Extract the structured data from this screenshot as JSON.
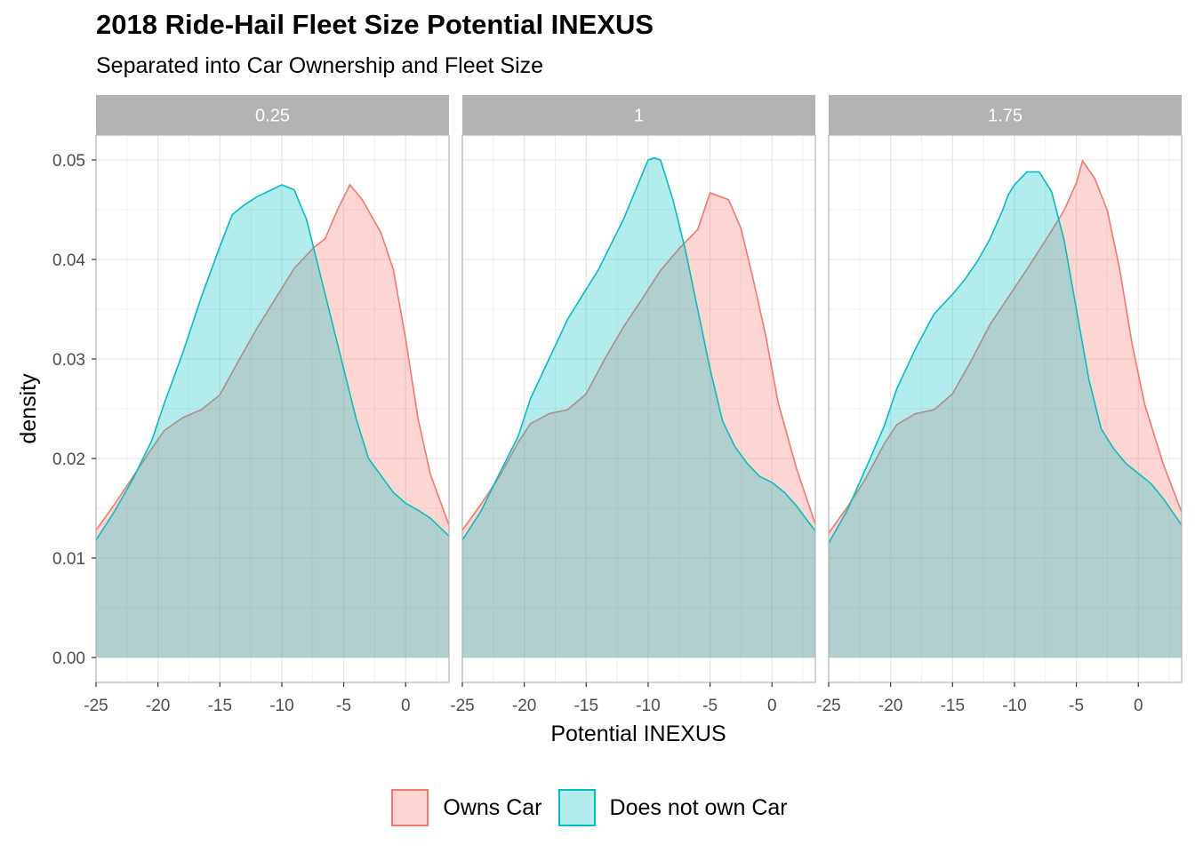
{
  "chart_data": {
    "type": "area",
    "title": "2018 Ride-Hail Fleet Size Potential INEXUS",
    "subtitle": "Separated into Car Ownership and Fleet Size",
    "xlabel": "Potential INEXUS",
    "ylabel": "density",
    "xlim": [
      -25,
      3.5
    ],
    "ylim": [
      -0.0025,
      0.0525
    ],
    "x_ticks": [
      -25,
      -20,
      -15,
      -10,
      -5,
      0
    ],
    "x_tick_labels": [
      "-25",
      "-20",
      "-15",
      "-10",
      "-5",
      "0"
    ],
    "y_ticks": [
      0.0,
      0.01,
      0.02,
      0.03,
      0.04,
      0.05
    ],
    "y_tick_labels": [
      "0.00",
      "0.01",
      "0.02",
      "0.03",
      "0.04",
      "0.05"
    ],
    "grid": true,
    "legend_position": "bottom",
    "series_meta": [
      {
        "name": "Owns Car",
        "line_color": "#F8766D",
        "fill_color": "#F8766D"
      },
      {
        "name": "Does not own Car",
        "line_color": "#00BFC4",
        "fill_color": "#00BFC4"
      }
    ],
    "panels": [
      {
        "label": "0.25",
        "series": [
          {
            "name": "Owns Car",
            "x": [
              -25,
              -23.5,
              -22,
              -20.5,
              -19.5,
              -18,
              -16.5,
              -15,
              -13.5,
              -12,
              -10.5,
              -9,
              -7.5,
              -6.5,
              -5.5,
              -4.5,
              -3.5,
              -2,
              -1,
              0,
              1,
              2,
              3.5
            ],
            "y": [
              0.0128,
              0.0154,
              0.0182,
              0.021,
              0.0228,
              0.0241,
              0.0249,
              0.0264,
              0.0298,
              0.0331,
              0.0361,
              0.0391,
              0.0411,
              0.0421,
              0.045,
              0.0475,
              0.046,
              0.0427,
              0.039,
              0.032,
              0.024,
              0.0184,
              0.0133
            ]
          },
          {
            "name": "Does not own Car",
            "x": [
              -25,
              -23.5,
              -22,
              -20.5,
              -19.5,
              -18,
              -16.5,
              -15,
              -14,
              -13,
              -12,
              -11,
              -10,
              -9,
              -8,
              -7,
              -6,
              -5,
              -4,
              -3,
              -2,
              -1,
              0,
              1,
              2,
              3.5
            ],
            "y": [
              0.0118,
              0.0147,
              0.018,
              0.0218,
              0.0255,
              0.0306,
              0.0362,
              0.0413,
              0.0445,
              0.0455,
              0.0463,
              0.0469,
              0.0475,
              0.047,
              0.044,
              0.039,
              0.034,
              0.029,
              0.024,
              0.02,
              0.0183,
              0.0166,
              0.0155,
              0.0148,
              0.014,
              0.0122
            ]
          }
        ]
      },
      {
        "label": "1",
        "series": [
          {
            "name": "Owns Car",
            "x": [
              -25,
              -23.5,
              -22,
              -20.5,
              -19.5,
              -18,
              -16.5,
              -15,
              -13.5,
              -12,
              -10.5,
              -9,
              -7.5,
              -6,
              -5,
              -3.5,
              -2.5,
              -1.5,
              -0.5,
              0.5,
              2,
              3.5
            ],
            "y": [
              0.0128,
              0.0154,
              0.0182,
              0.0216,
              0.0235,
              0.0245,
              0.0249,
              0.0265,
              0.03,
              0.0332,
              0.036,
              0.0389,
              0.0411,
              0.043,
              0.0467,
              0.046,
              0.0431,
              0.0379,
              0.0323,
              0.0256,
              0.0189,
              0.0134
            ]
          },
          {
            "name": "Does not own Car",
            "x": [
              -25,
              -23.5,
              -22,
              -20.5,
              -19.5,
              -18,
              -16.5,
              -15,
              -14,
              -13,
              -12,
              -11,
              -10,
              -9.5,
              -9,
              -8,
              -7,
              -6,
              -5,
              -4,
              -3,
              -2,
              -1,
              0,
              1,
              2,
              3.5
            ],
            "y": [
              0.0118,
              0.0147,
              0.0185,
              0.0222,
              0.026,
              0.03,
              0.034,
              0.037,
              0.039,
              0.0415,
              0.044,
              0.047,
              0.05,
              0.0502,
              0.05,
              0.046,
              0.041,
              0.035,
              0.029,
              0.0238,
              0.0212,
              0.0195,
              0.0182,
              0.0176,
              0.0166,
              0.0152,
              0.0127
            ]
          }
        ]
      },
      {
        "label": "1.75",
        "series": [
          {
            "name": "Owns Car",
            "x": [
              -25,
              -23.5,
              -22,
              -20.5,
              -19.5,
              -18,
              -16.5,
              -15,
              -13.5,
              -12,
              -10.5,
              -9,
              -7.5,
              -6,
              -5,
              -4.5,
              -3.5,
              -2.5,
              -1.5,
              -0.5,
              0.5,
              2,
              3.5
            ],
            "y": [
              0.0125,
              0.0151,
              0.018,
              0.0215,
              0.0234,
              0.0245,
              0.0249,
              0.0265,
              0.0298,
              0.0334,
              0.0362,
              0.039,
              0.0419,
              0.0449,
              0.0477,
              0.0499,
              0.0481,
              0.0449,
              0.039,
              0.0315,
              0.0255,
              0.0195,
              0.0146
            ]
          },
          {
            "name": "Does not own Car",
            "x": [
              -25,
              -23.5,
              -22,
              -20.5,
              -19.5,
              -18,
              -16.5,
              -15,
              -14,
              -13,
              -12,
              -11,
              -10.5,
              -10,
              -9,
              -8,
              -7,
              -6,
              -5,
              -4,
              -3,
              -2,
              -1,
              0,
              1,
              2,
              3.5
            ],
            "y": [
              0.0115,
              0.0148,
              0.019,
              0.0233,
              0.027,
              0.031,
              0.0345,
              0.0365,
              0.038,
              0.0398,
              0.042,
              0.0448,
              0.0465,
              0.0475,
              0.0488,
              0.0488,
              0.0468,
              0.042,
              0.035,
              0.028,
              0.023,
              0.021,
              0.0195,
              0.0185,
              0.0175,
              0.016,
              0.0133
            ]
          }
        ]
      }
    ]
  }
}
